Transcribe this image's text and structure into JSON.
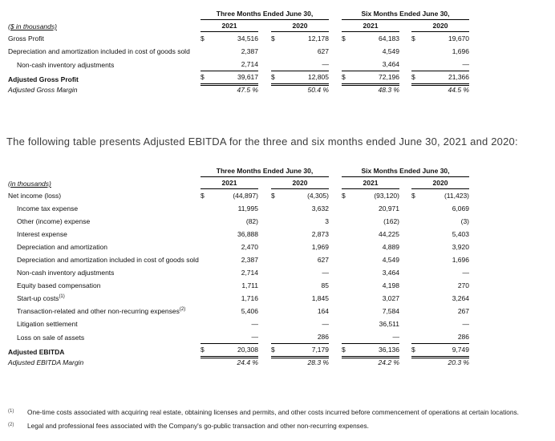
{
  "meta": {
    "dollar_sign": "$",
    "rule_color": "#000000",
    "table_text_color": "#111111",
    "paragraph_text_color": "#3d3d3d",
    "background_color": "#ffffff"
  },
  "paragraph": "The following table presents Adjusted EBITDA for the three and six months ended June 30, 2021 and 2020:",
  "gp": {
    "units_label": "($ in thousands)",
    "groups": [
      "Three Months Ended June 30,",
      "Six Months Ended June 30,"
    ],
    "years": [
      "2021",
      "2020",
      "2021",
      "2020"
    ],
    "rows": [
      {
        "label": "Gross Profit",
        "dollar": true,
        "values": [
          "34,516",
          "12,178",
          "64,183",
          "19,670"
        ]
      },
      {
        "label": "Depreciation and amortization included in cost of goods sold",
        "values": [
          "2,387",
          "627",
          "4,549",
          "1,696"
        ]
      },
      {
        "label": "Non-cash inventory adjustments",
        "indent": true,
        "rule_below": true,
        "values": [
          "2,714",
          "—",
          "3,464",
          "—"
        ]
      },
      {
        "label": "Adjusted Gross Profit",
        "bold": true,
        "dollar": true,
        "total": true,
        "values": [
          "39,617",
          "12,805",
          "72,196",
          "21,366"
        ]
      },
      {
        "label": "Adjusted Gross Margin",
        "italic": true,
        "values": [
          "47.5 %",
          "50.4 %",
          "48.3 %",
          "44.5 %"
        ]
      }
    ]
  },
  "ebitda": {
    "units_label": "(in thousands)",
    "groups": [
      "Three Months Ended June 30,",
      "Six Months Ended June 30,"
    ],
    "years": [
      "2021",
      "2020",
      "2021",
      "2020"
    ],
    "rows": [
      {
        "label": "Net income (loss)",
        "dollar": true,
        "values": [
          "(44,897)",
          "(4,305)",
          "(93,120)",
          "(11,423)"
        ]
      },
      {
        "label": "Income tax expense",
        "indent": true,
        "values": [
          "11,995",
          "3,632",
          "20,971",
          "6,069"
        ]
      },
      {
        "label": "Other (income) expense",
        "indent": true,
        "values": [
          "(82)",
          "3",
          "(162)",
          "(3)"
        ]
      },
      {
        "label": "Interest expense",
        "indent": true,
        "values": [
          "36,888",
          "2,873",
          "44,225",
          "5,403"
        ]
      },
      {
        "label": "Depreciation and amortization",
        "indent": true,
        "values": [
          "2,470",
          "1,969",
          "4,889",
          "3,920"
        ]
      },
      {
        "label": "Depreciation and amortization included in cost of goods sold",
        "indent": true,
        "values": [
          "2,387",
          "627",
          "4,549",
          "1,696"
        ]
      },
      {
        "label": "Non-cash inventory adjustments",
        "indent": true,
        "values": [
          "2,714",
          "—",
          "3,464",
          "—"
        ]
      },
      {
        "label": "Equity based compensation",
        "indent": true,
        "values": [
          "1,711",
          "85",
          "4,198",
          "270"
        ]
      },
      {
        "label": "Start-up costs",
        "sup": "(1)",
        "indent": true,
        "values": [
          "1,716",
          "1,845",
          "3,027",
          "3,264"
        ]
      },
      {
        "label": "Transaction-related and other non-recurring expenses",
        "sup": "(2)",
        "indent": true,
        "values": [
          "5,406",
          "164",
          "7,584",
          "267"
        ]
      },
      {
        "label": "Litigation settlement",
        "indent": true,
        "values": [
          "—",
          "—",
          "36,511",
          "—"
        ]
      },
      {
        "label": "Loss on sale of assets",
        "indent": true,
        "rule_below": true,
        "values": [
          "—",
          "286",
          "—",
          "286"
        ]
      },
      {
        "label": "Adjusted EBITDA",
        "bold": true,
        "dollar": true,
        "total": true,
        "values": [
          "20,308",
          "7,179",
          "36,136",
          "9,749"
        ]
      },
      {
        "label": "Adjusted EBITDA Margin",
        "italic": true,
        "values": [
          "24.4 %",
          "28.3 %",
          "24.2 %",
          "20.3 %"
        ]
      }
    ]
  },
  "footnotes": [
    {
      "marker": "(1)",
      "text": "One-time costs associated with acquiring real estate, obtaining licenses and permits, and other costs incurred before commencement of operations at certain locations."
    },
    {
      "marker": "(2)",
      "text": "Legal and professional fees associated with the Company's go-public transaction and other non-recurring expenses."
    }
  ]
}
